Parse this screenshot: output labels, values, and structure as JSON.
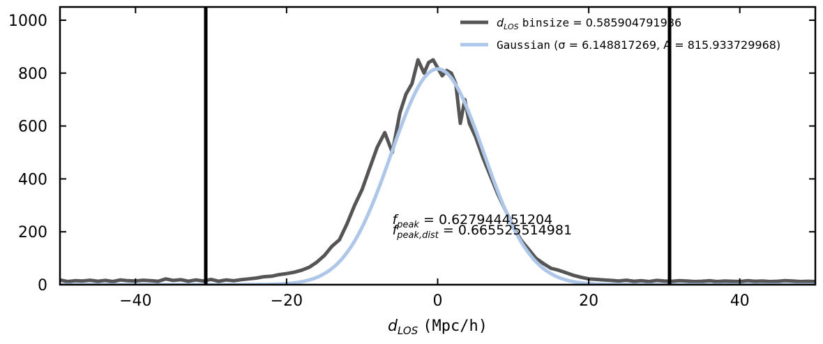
{
  "chart_data": {
    "type": "line",
    "xlim": [
      -50,
      50
    ],
    "ylim": [
      0,
      1050
    ],
    "x_ticks": [
      -40,
      -20,
      0,
      20,
      40
    ],
    "x_tick_labels": [
      "−40",
      "−20",
      "0",
      "20",
      "40"
    ],
    "y_ticks": [
      0,
      200,
      400,
      600,
      800,
      1000
    ],
    "y_tick_labels": [
      "0",
      "200",
      "400",
      "600",
      "800",
      "1000"
    ],
    "xlabel": {
      "var": "d",
      "sub": "LOS",
      "unit": "(Mpc/h)"
    },
    "vlines": [
      -30.7,
      30.7
    ],
    "series": [
      {
        "name": "d_LOS binsize = 0.585904791986",
        "legend": {
          "var": "d",
          "sub": "LOS",
          "mono": "binsize",
          "rest": "= 0.585904791986"
        },
        "color": "#555555",
        "x": [
          -50,
          -49,
          -48,
          -47,
          -46,
          -45,
          -44,
          -43,
          -42,
          -41,
          -40,
          -39,
          -38,
          -37,
          -36,
          -35,
          -34,
          -33,
          -32,
          -31,
          -30,
          -29,
          -28,
          -27,
          -26,
          -25,
          -24,
          -23,
          -22,
          -21,
          -20,
          -19,
          -18,
          -17,
          -16,
          -15,
          -14,
          -13,
          -12,
          -11,
          -10,
          -9,
          -8,
          -7,
          -6,
          -5,
          -4.2,
          -3.4,
          -2.6,
          -1.8,
          -1.2,
          -0.6,
          0,
          0.6,
          1.2,
          1.8,
          2.4,
          3.0,
          3.6,
          4.2,
          5,
          6,
          7,
          8,
          9,
          10,
          11,
          12,
          13,
          14,
          15,
          16,
          17,
          18,
          19,
          20,
          21,
          22,
          23,
          24,
          25,
          26,
          27,
          28,
          29,
          30,
          31,
          32,
          33,
          34,
          35,
          36,
          37,
          38,
          39,
          40,
          41,
          42,
          43,
          44,
          45,
          46,
          47,
          48,
          49,
          50
        ],
        "y": [
          18,
          12,
          15,
          14,
          17,
          13,
          16,
          12,
          18,
          15,
          14,
          17,
          15,
          13,
          22,
          16,
          19,
          13,
          18,
          14,
          20,
          13,
          18,
          15,
          19,
          22,
          25,
          30,
          32,
          38,
          42,
          47,
          55,
          66,
          85,
          110,
          145,
          170,
          230,
          300,
          360,
          440,
          520,
          575,
          500,
          650,
          720,
          760,
          850,
          800,
          840,
          850,
          820,
          790,
          810,
          800,
          760,
          610,
          700,
          610,
          560,
          480,
          410,
          340,
          280,
          220,
          170,
          135,
          100,
          80,
          62,
          55,
          45,
          35,
          28,
          22,
          20,
          18,
          16,
          14,
          17,
          13,
          15,
          12,
          16,
          14,
          13,
          15,
          14,
          12,
          13,
          15,
          12,
          14,
          13,
          12,
          15,
          13,
          14,
          12,
          13,
          15,
          14,
          12,
          13,
          12
        ]
      },
      {
        "name": "Gaussian (σ = 6.148817269, A = 815.933729968)",
        "legend": {
          "mono": "Gaussian",
          "rest": "(σ = 6.148817269, A = 815.933729968)"
        },
        "color": "#aec7e8",
        "gaussian": {
          "mu": 0,
          "sigma": 6.148817269,
          "A": 815.933729968
        }
      }
    ],
    "annotations": [
      {
        "text_var": "f",
        "text_sub": "peak",
        "text_rest": "= 0.627944451204",
        "x": -6,
        "y": 230
      },
      {
        "text_var": "f",
        "text_sub": "peak,dist",
        "text_rest": "= 0.665525514981",
        "x": -6,
        "y": 190
      }
    ]
  }
}
